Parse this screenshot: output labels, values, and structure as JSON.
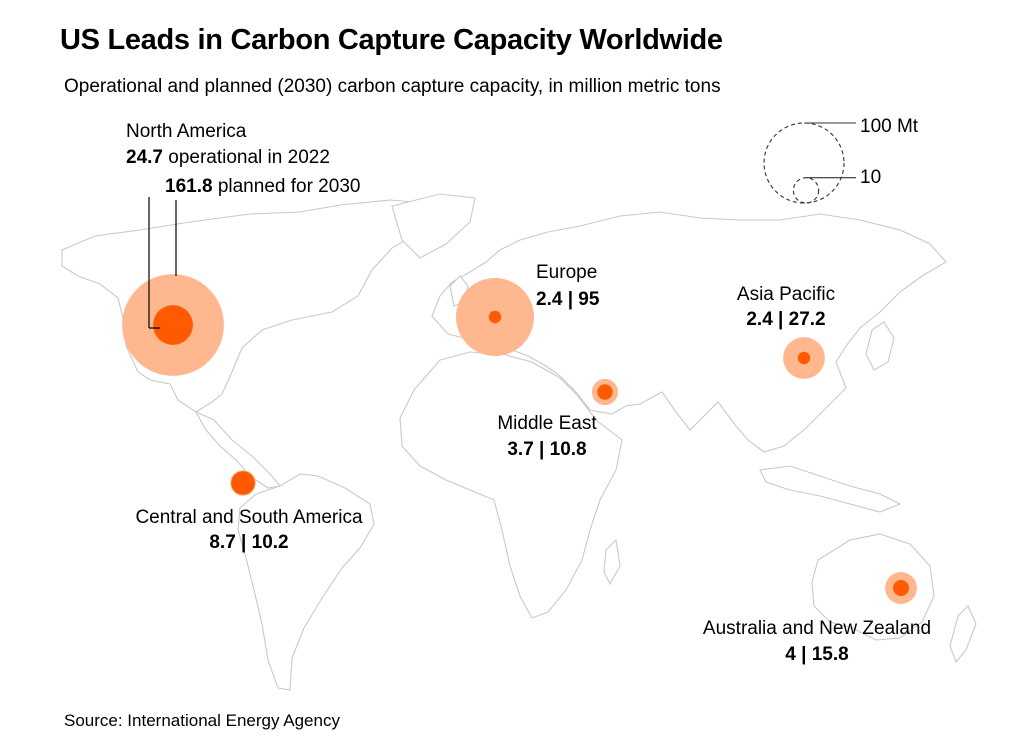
{
  "title": "US Leads in Carbon Capture Capacity Worldwide",
  "subtitle": "Operational and planned (2030) carbon capture capacity, in million metric tons",
  "source": "Source: International Energy Agency",
  "colors": {
    "operational": "#ff5a00",
    "planned": "#ffb78f",
    "land_stroke": "#c9c9c9"
  },
  "size_legend": {
    "large_label": "100 Mt",
    "large_value": 100,
    "small_label": "10",
    "small_value": 10
  },
  "north_america_annotation": {
    "region": "North America",
    "operational_value": "24.7",
    "operational_text": " operational in 2022",
    "planned_value": "161.8",
    "planned_text": " planned for 2030"
  },
  "regions": [
    {
      "name": "North America",
      "operational": 24.7,
      "planned": 161.8,
      "label": ""
    },
    {
      "name": "Europe",
      "operational": 2.4,
      "planned": 95,
      "label": "2.4 | 95"
    },
    {
      "name": "Asia Pacific",
      "operational": 2.4,
      "planned": 27.2,
      "label": "2.4 | 27.2"
    },
    {
      "name": "Middle East",
      "operational": 3.7,
      "planned": 10.8,
      "label": "3.7 | 10.8"
    },
    {
      "name": "Central and South America",
      "operational": 8.7,
      "planned": 10.2,
      "label": "8.7 | 10.2"
    },
    {
      "name": "Australia and New Zealand",
      "operational": 4,
      "planned": 15.8,
      "label": "4 | 15.8"
    }
  ]
}
